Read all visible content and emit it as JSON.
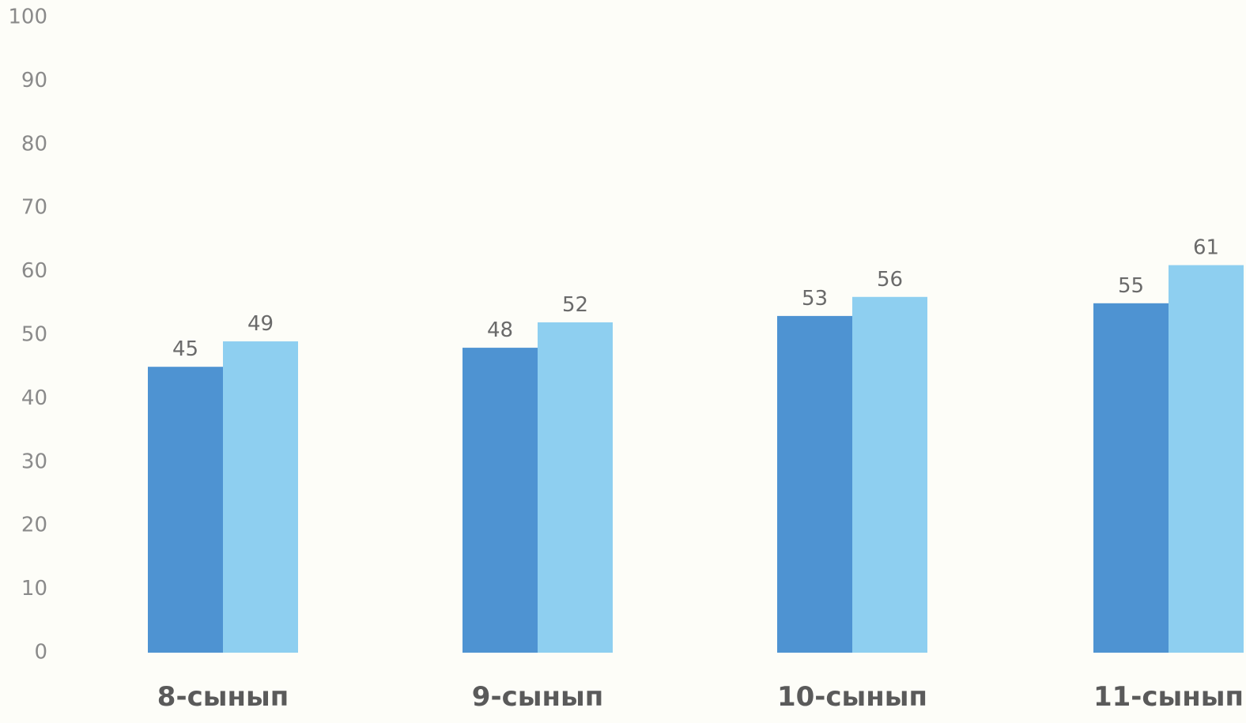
{
  "chart_data": {
    "type": "bar",
    "categories": [
      "8-сынып",
      "9-сынып",
      "10-сынып",
      "11-сынып"
    ],
    "series": [
      {
        "values": [
          45,
          48,
          53,
          55
        ],
        "color": "#4e93d2"
      },
      {
        "values": [
          49,
          52,
          56,
          61
        ],
        "color": "#8ecff0"
      }
    ],
    "ylim": [
      0,
      100
    ],
    "yticks": [
      0,
      10,
      20,
      30,
      40,
      50,
      60,
      70,
      80,
      90,
      100
    ],
    "grid": false,
    "legend": "none",
    "data_labels": true
  }
}
